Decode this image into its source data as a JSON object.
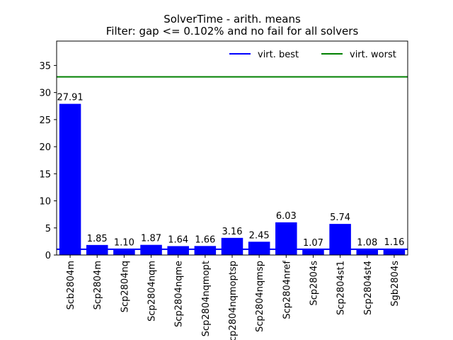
{
  "chart_data": {
    "type": "bar",
    "title_lines": [
      "SolverTime - arith. means",
      "Filter: gap <= 0.102% and no fail for all solvers"
    ],
    "xlabel": "",
    "ylabel": "",
    "ylim": [
      0,
      39.5
    ],
    "yticks": [
      0,
      5,
      10,
      15,
      20,
      25,
      30,
      35
    ],
    "categories": [
      "Scb2804m",
      "Scp2804m",
      "Scp2804nq",
      "Scp2804nqm",
      "Scp2804nqme",
      "Scp2804nqmopt",
      "Scp2804nqmoptsp",
      "Scp2804nqmsp",
      "Scp2804nref",
      "Scp2804s",
      "Scp2804st1",
      "Scp2804st4",
      "Sgb2804s"
    ],
    "values": [
      27.91,
      1.85,
      1.1,
      1.87,
      1.64,
      1.66,
      3.16,
      2.45,
      6.03,
      1.07,
      5.74,
      1.08,
      1.16
    ],
    "value_labels": [
      "27.91",
      "1.85",
      "1.10",
      "1.87",
      "1.64",
      "1.66",
      "3.16",
      "2.45",
      "6.03",
      "1.07",
      "5.74",
      "1.08",
      "1.16"
    ],
    "bar_color": "#0000ff",
    "reference_lines": [
      {
        "name": "virt. best",
        "value": 1.07,
        "color": "#0000ff"
      },
      {
        "name": "virt. worst",
        "value": 32.9,
        "color": "#008000"
      }
    ],
    "legend_position": "top-right",
    "grid": false
  }
}
